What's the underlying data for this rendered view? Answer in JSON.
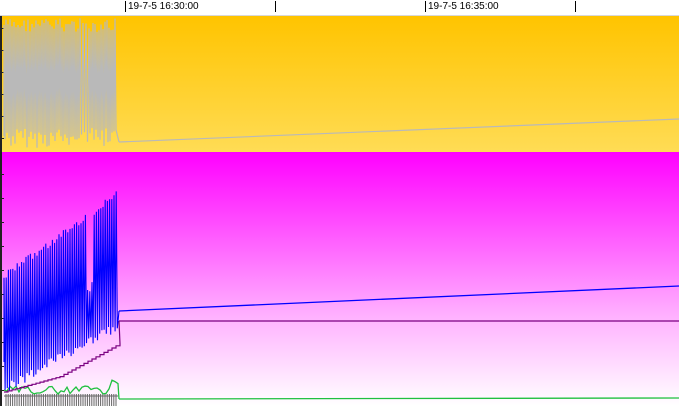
{
  "time_ruler": {
    "labels": [
      "19-7-5 16:30:00",
      "19-7-5 16:35:00"
    ]
  },
  "colors": {
    "top_pane": "#ffc400",
    "bottom_pane": "#ff00ff",
    "series_gray": "#b9b9b9",
    "series_blue": "#0000ff",
    "series_purple": "#7a0080",
    "series_green": "#20c040",
    "series_darkgray": "#666666"
  }
}
